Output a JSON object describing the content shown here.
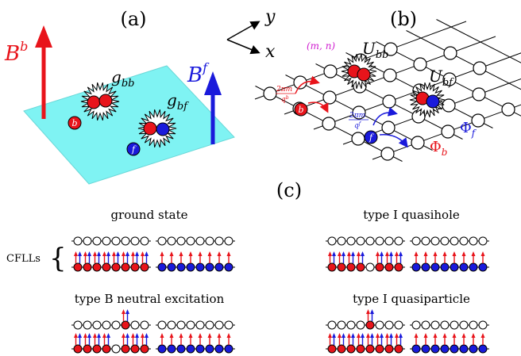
{
  "panels": {
    "a": {
      "tag": "(a)"
    },
    "b": {
      "tag": "(b)"
    },
    "c": {
      "tag": "(c)"
    }
  },
  "panel_a": {
    "field_b": {
      "base": "B",
      "sup": "b"
    },
    "field_f": {
      "base": "B",
      "sup": "f"
    },
    "g_bb": {
      "base": "g",
      "sub": "bb"
    },
    "g_bf": {
      "base": "g",
      "sub": "bf"
    },
    "boson_label": "b",
    "fermion_label": "f"
  },
  "panel_b": {
    "axis_y": "y",
    "axis_x": "x",
    "site_label": "(m, n)",
    "U_bb": {
      "base": "U",
      "sub": "bb"
    },
    "U_bf": {
      "base": "U",
      "sub": "bf"
    },
    "hop_b": {
      "num": "2πm",
      "den": "q",
      "den_sup": "b"
    },
    "hop_f": {
      "num": "2πm",
      "den": "q",
      "den_sup": "f"
    },
    "phi_f": {
      "base": "Φ",
      "sub": "f"
    },
    "phi_b": {
      "base": "Φ",
      "sub": "b"
    },
    "boson_label": "b",
    "fermion_label": "f"
  },
  "panel_c": {
    "cflls_label": "CFLLs",
    "configs": [
      {
        "title": "ground state"
      },
      {
        "title": "type I quasihole"
      },
      {
        "title": "type B neutral excitation"
      },
      {
        "title": "type I quasiparticle"
      }
    ]
  },
  "colors": {
    "boson": "#e8141b",
    "fermion": "#1a1adb",
    "plane": "#7ff3f3",
    "site_label": "#d020d0",
    "hop_b": "#e8141b",
    "hop_f": "#1a1adb"
  }
}
